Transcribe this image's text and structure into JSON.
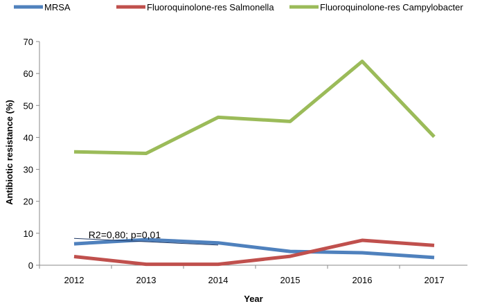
{
  "chart_data": {
    "type": "line",
    "x": [
      2012,
      2013,
      2014,
      2015,
      2016,
      2017
    ],
    "xlabel": "Year",
    "ylabel": "Antibiotic resistance (%)",
    "ylim": [
      0,
      70
    ],
    "yticks": [
      0,
      10,
      20,
      30,
      40,
      50,
      60,
      70
    ],
    "grid": false,
    "legend_position": "top",
    "series": [
      {
        "name": "MRSA",
        "color": "#4f81bd",
        "values": [
          6.7,
          8.0,
          7.0,
          4.3,
          3.9,
          2.4
        ]
      },
      {
        "name": "Fluoroquinolone-res Salmonella",
        "color": "#c0504d",
        "values": [
          2.7,
          0.3,
          0.3,
          2.8,
          7.8,
          6.2
        ]
      },
      {
        "name": "Fluoroquinolone-res Campylobacter",
        "color": "#9bbb59",
        "values": [
          35.5,
          35.0,
          46.3,
          45.0,
          63.8,
          40.2
        ]
      }
    ],
    "trendline": {
      "series": "MRSA",
      "from": [
        2012,
        8.4
      ],
      "to": [
        2014,
        6.3
      ]
    },
    "annotation": {
      "text": "R2=0,80; p=0,01",
      "x": 2012.2,
      "y": 8.5
    }
  }
}
